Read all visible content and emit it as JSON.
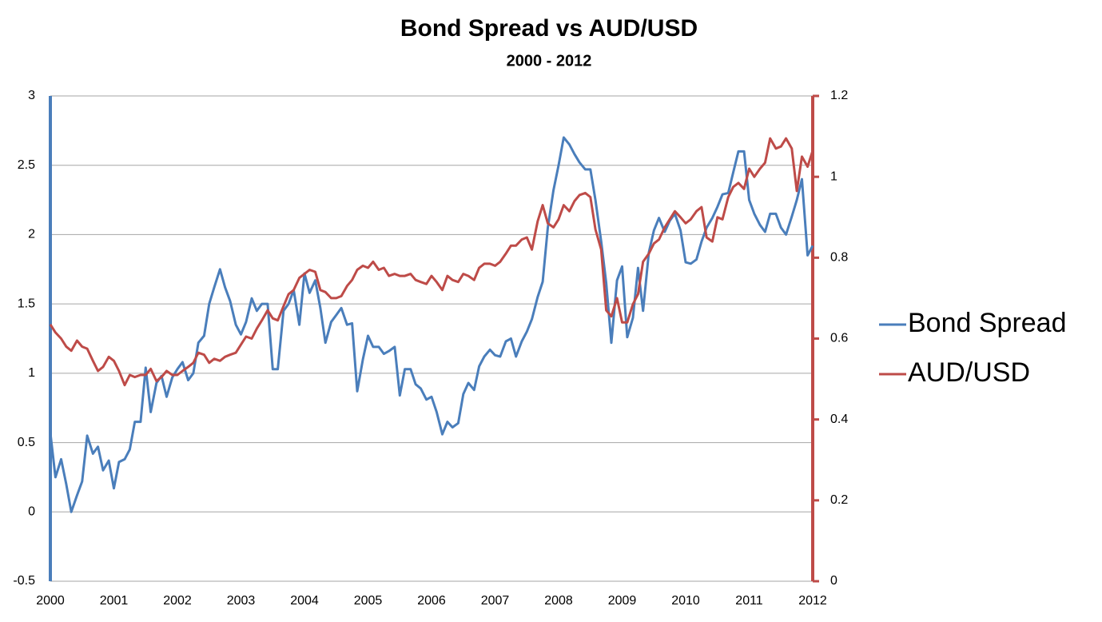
{
  "chart_data": {
    "type": "line",
    "title": "Bond Spread vs AUD/USD",
    "subtitle": "2000 - 2012",
    "x": [
      2000,
      2000.08,
      2000.17,
      2000.25,
      2000.33,
      2000.42,
      2000.5,
      2000.58,
      2000.67,
      2000.75,
      2000.83,
      2000.92,
      2001,
      2001.08,
      2001.17,
      2001.25,
      2001.33,
      2001.42,
      2001.5,
      2001.58,
      2001.67,
      2001.75,
      2001.83,
      2001.92,
      2002,
      2002.08,
      2002.17,
      2002.25,
      2002.33,
      2002.42,
      2002.5,
      2002.58,
      2002.67,
      2002.75,
      2002.83,
      2002.92,
      2003,
      2003.08,
      2003.17,
      2003.25,
      2003.33,
      2003.42,
      2003.5,
      2003.58,
      2003.67,
      2003.75,
      2003.83,
      2003.92,
      2004,
      2004.08,
      2004.17,
      2004.25,
      2004.33,
      2004.42,
      2004.5,
      2004.58,
      2004.67,
      2004.75,
      2004.83,
      2004.92,
      2005,
      2005.08,
      2005.17,
      2005.25,
      2005.33,
      2005.42,
      2005.5,
      2005.58,
      2005.67,
      2005.75,
      2005.83,
      2005.92,
      2006,
      2006.08,
      2006.17,
      2006.25,
      2006.33,
      2006.42,
      2006.5,
      2006.58,
      2006.67,
      2006.75,
      2006.83,
      2006.92,
      2007,
      2007.08,
      2007.17,
      2007.25,
      2007.33,
      2007.42,
      2007.5,
      2007.58,
      2007.67,
      2007.75,
      2007.83,
      2007.92,
      2008,
      2008.08,
      2008.17,
      2008.25,
      2008.33,
      2008.42,
      2008.5,
      2008.58,
      2008.67,
      2008.75,
      2008.83,
      2008.92,
      2009,
      2009.08,
      2009.17,
      2009.25,
      2009.33,
      2009.42,
      2009.5,
      2009.58,
      2009.67,
      2009.75,
      2009.83,
      2009.92,
      2010,
      2010.08,
      2010.17,
      2010.25,
      2010.33,
      2010.42,
      2010.5,
      2010.58,
      2010.67,
      2010.75,
      2010.83,
      2010.92,
      2011,
      2011.08,
      2011.17,
      2011.25,
      2011.33,
      2011.42,
      2011.5,
      2011.58,
      2011.67,
      2011.75,
      2011.83,
      2011.92,
      2012
    ],
    "series": [
      {
        "name": "Bond Spread",
        "color": "#4a7ebb",
        "values": [
          0.57,
          0.25,
          0.38,
          0.2,
          0,
          0.12,
          0.22,
          0.55,
          0.42,
          0.47,
          0.3,
          0.37,
          0.17,
          0.36,
          0.38,
          0.45,
          0.65,
          0.65,
          1.04,
          0.72,
          0.93,
          0.98,
          0.83,
          0.97,
          1.03,
          1.08,
          0.95,
          1.0,
          1.22,
          1.27,
          1.5,
          1.62,
          1.75,
          1.62,
          1.52,
          1.35,
          1.28,
          1.37,
          1.54,
          1.45,
          1.5,
          1.5,
          1.03,
          1.03,
          1.45,
          1.5,
          1.6,
          1.35,
          1.72,
          1.58,
          1.67,
          1.47,
          1.22,
          1.37,
          1.42,
          1.47,
          1.35,
          1.36,
          0.87,
          1.1,
          1.27,
          1.19,
          1.19,
          1.14,
          1.16,
          1.19,
          0.84,
          1.03,
          1.03,
          0.92,
          0.89,
          0.81,
          0.83,
          0.72,
          0.56,
          0.65,
          0.61,
          0.64,
          0.85,
          0.93,
          0.88,
          1.05,
          1.12,
          1.17,
          1.13,
          1.12,
          1.23,
          1.25,
          1.12,
          1.23,
          1.3,
          1.39,
          1.55,
          1.66,
          2.05,
          2.32,
          2.5,
          2.7,
          2.65,
          2.58,
          2.52,
          2.47,
          2.47,
          2.25,
          1.95,
          1.65,
          1.22,
          1.67,
          1.77,
          1.26,
          1.4,
          1.76,
          1.45,
          1.87,
          2.03,
          2.12,
          2.02,
          2.1,
          2.15,
          2.03,
          1.8,
          1.79,
          1.82,
          1.95,
          2.05,
          2.12,
          2.2,
          2.29,
          2.3,
          2.45,
          2.6,
          2.6,
          2.25,
          2.15,
          2.07,
          2.02,
          2.15,
          2.15,
          2.05,
          2.0,
          2.13,
          2.25,
          2.4,
          1.85,
          1.92
        ]
      },
      {
        "name": "AUD/USD",
        "color": "#be4b48",
        "axis": "y2",
        "values": [
          0.635,
          0.615,
          0.6,
          0.58,
          0.57,
          0.595,
          0.58,
          0.575,
          0.545,
          0.52,
          0.53,
          0.555,
          0.545,
          0.52,
          0.485,
          0.51,
          0.505,
          0.51,
          0.51,
          0.525,
          0.495,
          0.505,
          0.52,
          0.51,
          0.51,
          0.52,
          0.53,
          0.54,
          0.565,
          0.56,
          0.54,
          0.55,
          0.545,
          0.555,
          0.56,
          0.565,
          0.585,
          0.605,
          0.6,
          0.625,
          0.645,
          0.67,
          0.65,
          0.645,
          0.68,
          0.71,
          0.72,
          0.75,
          0.76,
          0.77,
          0.765,
          0.72,
          0.715,
          0.7,
          0.7,
          0.705,
          0.73,
          0.745,
          0.77,
          0.78,
          0.775,
          0.79,
          0.77,
          0.775,
          0.755,
          0.76,
          0.755,
          0.755,
          0.76,
          0.745,
          0.74,
          0.735,
          0.755,
          0.74,
          0.72,
          0.755,
          0.745,
          0.74,
          0.76,
          0.755,
          0.745,
          0.775,
          0.785,
          0.785,
          0.78,
          0.79,
          0.81,
          0.83,
          0.83,
          0.845,
          0.85,
          0.82,
          0.89,
          0.93,
          0.885,
          0.875,
          0.895,
          0.93,
          0.915,
          0.94,
          0.955,
          0.96,
          0.95,
          0.87,
          0.82,
          0.67,
          0.655,
          0.7,
          0.64,
          0.64,
          0.685,
          0.71,
          0.79,
          0.81,
          0.835,
          0.845,
          0.875,
          0.895,
          0.915,
          0.9,
          0.885,
          0.895,
          0.915,
          0.925,
          0.85,
          0.84,
          0.9,
          0.895,
          0.95,
          0.975,
          0.985,
          0.97,
          1.02,
          1.0,
          1.02,
          1.035,
          1.095,
          1.07,
          1.075,
          1.095,
          1.07,
          0.965,
          1.05,
          1.025,
          1.065
        ]
      }
    ],
    "xlim": [
      2000,
      2012
    ],
    "xticks": [
      2000,
      2001,
      2002,
      2003,
      2004,
      2005,
      2006,
      2007,
      2008,
      2009,
      2010,
      2011,
      2012
    ],
    "ylim": [
      -0.5,
      3
    ],
    "yticks": [
      -0.5,
      0,
      0.5,
      1,
      1.5,
      2,
      2.5,
      3
    ],
    "y2lim": [
      0,
      1.2
    ],
    "y2ticks": [
      0,
      0.2,
      0.4,
      0.6,
      0.8,
      1,
      1.2
    ],
    "grid": true,
    "legend": "right"
  }
}
